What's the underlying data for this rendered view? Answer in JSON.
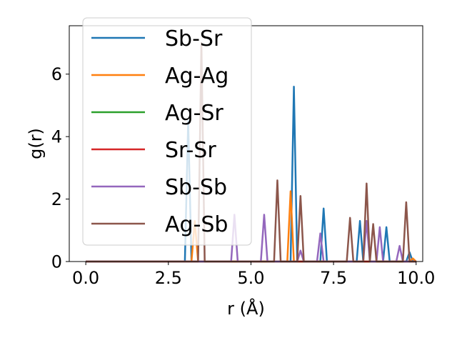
{
  "chart_data": {
    "type": "line",
    "xlabel": "r (Å)",
    "ylabel": "g(r)",
    "xlim": [
      -0.5,
      10.2
    ],
    "ylim": [
      0,
      7.55
    ],
    "xticks": [
      0.0,
      2.5,
      5.0,
      7.5,
      10.0
    ],
    "xtick_labels": [
      "0.0",
      "2.5",
      "5.0",
      "7.5",
      "10.0"
    ],
    "yticks": [
      0,
      2,
      4,
      6
    ],
    "ytick_labels": [
      "0",
      "2",
      "4",
      "6"
    ],
    "grid": false,
    "legend_position": "upper-left",
    "series": [
      {
        "name": "Sb-Sr",
        "color": "#1f77b4",
        "peaks": [
          [
            3.1,
            4.5
          ],
          [
            6.3,
            5.6
          ],
          [
            7.2,
            1.7
          ],
          [
            8.3,
            1.3
          ],
          [
            9.1,
            1.1
          ],
          [
            9.8,
            0.3
          ]
        ]
      },
      {
        "name": "Ag-Ag",
        "color": "#ff7f0e",
        "peaks": [
          [
            3.3,
            1.3
          ],
          [
            6.2,
            2.25
          ],
          [
            9.9,
            0.1
          ]
        ]
      },
      {
        "name": "Ag-Sr",
        "color": "#2ca02c",
        "peaks": []
      },
      {
        "name": "Sr-Sr",
        "color": "#d62728",
        "peaks": []
      },
      {
        "name": "Sb-Sb",
        "color": "#9467bd",
        "peaks": [
          [
            4.5,
            1.5
          ],
          [
            5.4,
            1.5
          ],
          [
            6.5,
            0.35
          ],
          [
            7.1,
            0.9
          ],
          [
            8.5,
            1.3
          ],
          [
            8.9,
            1.1
          ],
          [
            9.5,
            0.5
          ]
        ]
      },
      {
        "name": "Ag-Sb",
        "color": "#8c564b",
        "peaks": [
          [
            3.5,
            7.0
          ],
          [
            5.8,
            2.6
          ],
          [
            6.5,
            2.1
          ],
          [
            8.0,
            1.4
          ],
          [
            8.5,
            2.5
          ],
          [
            8.7,
            1.2
          ],
          [
            9.7,
            1.9
          ]
        ]
      }
    ]
  }
}
